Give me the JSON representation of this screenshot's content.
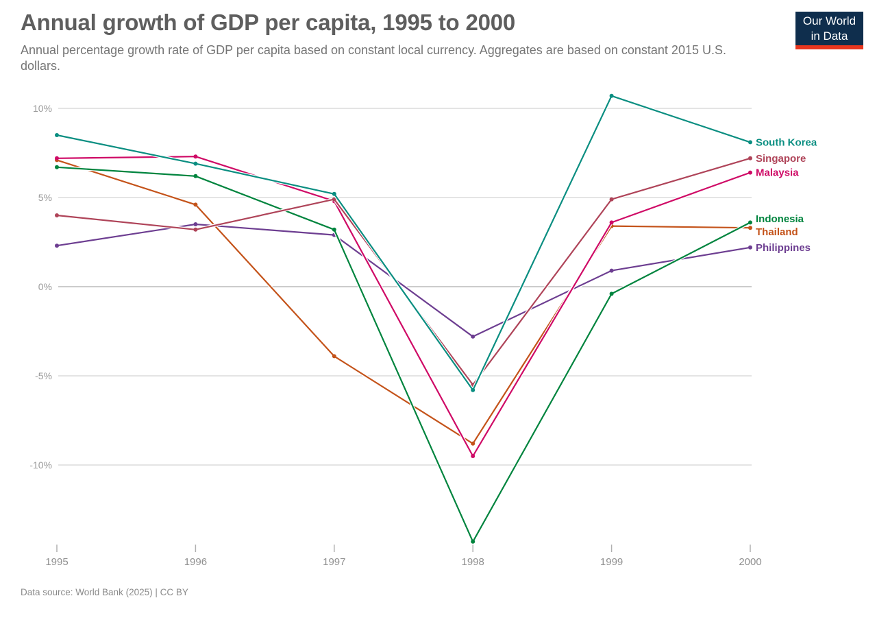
{
  "header": {
    "title": "Annual growth of GDP per capita, 1995 to 2000",
    "subtitle": "Annual percentage growth rate of GDP per capita based on constant local currency. Aggregates are based on constant 2015 U.S. dollars.",
    "logo": {
      "line1": "Our World",
      "line2": "in Data",
      "bg_color": "#0f2e4d",
      "accent_color": "#e8361e"
    }
  },
  "footer": {
    "source": "Data source: World Bank (2025) | CC BY"
  },
  "chart_data": {
    "type": "line",
    "title": "Annual growth of GDP per capita, 1995 to 2000",
    "x": [
      "1995",
      "1996",
      "1997",
      "1998",
      "1999",
      "2000"
    ],
    "series": [
      {
        "name": "South Korea",
        "color": "#0a8e81",
        "values": [
          8.5,
          6.9,
          5.2,
          -5.8,
          10.7,
          8.1
        ]
      },
      {
        "name": "Singapore",
        "color": "#af4459",
        "values": [
          4.0,
          3.2,
          4.9,
          -5.5,
          4.9,
          7.2
        ]
      },
      {
        "name": "Malaysia",
        "color": "#cf0a66",
        "values": [
          7.2,
          7.3,
          4.8,
          -9.5,
          3.6,
          6.4
        ]
      },
      {
        "name": "Indonesia",
        "color": "#00843e",
        "values": [
          6.7,
          6.2,
          3.2,
          -14.3,
          -0.4,
          3.6
        ]
      },
      {
        "name": "Thailand",
        "color": "#c4531a",
        "values": [
          7.1,
          4.6,
          -3.9,
          -8.8,
          3.4,
          3.3
        ]
      },
      {
        "name": "Philippines",
        "color": "#6d3e91",
        "values": [
          2.3,
          3.5,
          2.9,
          -2.8,
          0.9,
          2.2
        ]
      }
    ],
    "yticks": [
      {
        "value": 10,
        "label": "10%"
      },
      {
        "value": 5,
        "label": "5%"
      },
      {
        "value": 0,
        "label": "0%"
      },
      {
        "value": -5,
        "label": "-5%"
      },
      {
        "value": -10,
        "label": "-10%"
      }
    ],
    "xlabel": "",
    "ylabel": "",
    "ylim": [
      -15,
      11.2
    ],
    "grid": true,
    "legend_position": "right-line-labels"
  }
}
